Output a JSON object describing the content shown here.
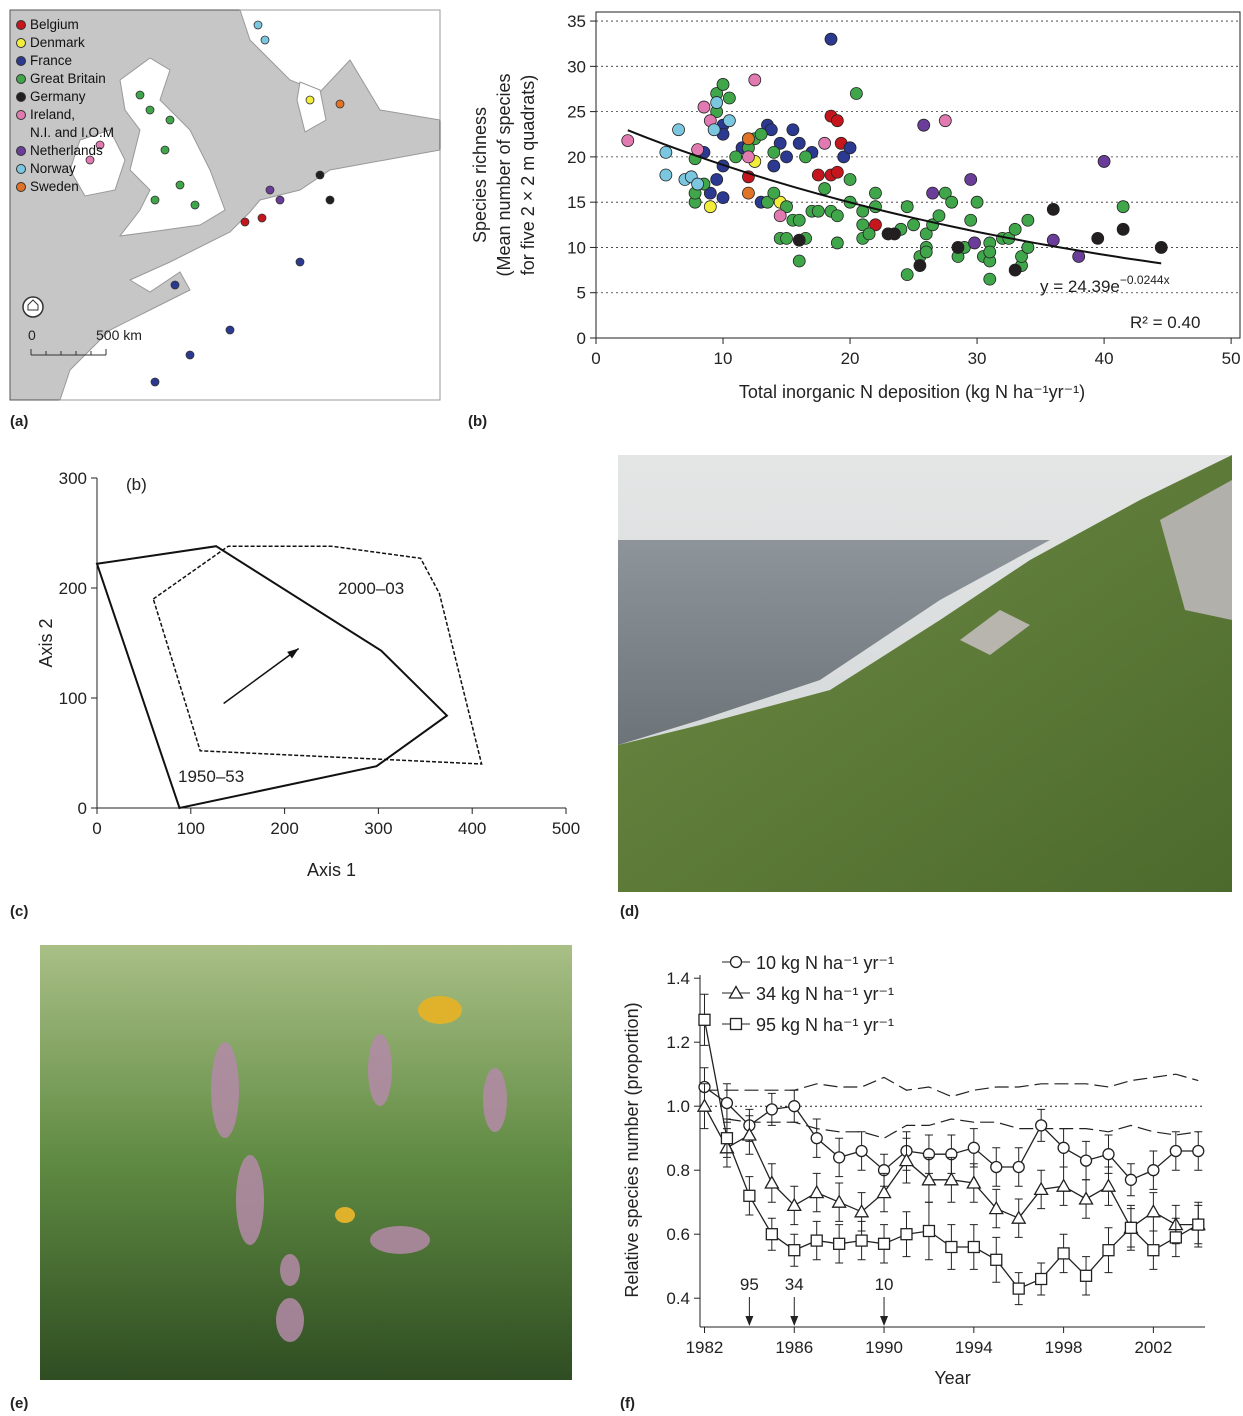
{
  "panels": [
    "(a)",
    "(b)",
    "(c)",
    "(d)",
    "(e)",
    "(f)"
  ],
  "map": {
    "scale_labels": [
      "0",
      "500 km"
    ]
  },
  "chart_data": [
    {
      "type": "scatter",
      "xlabel": "Total inorganic N deposition (kg N ha⁻¹yr⁻¹)",
      "ylabel": [
        "Species richness",
        "(Mean number of species",
        "for five 2 × 2 m quadrats)"
      ],
      "xlim": [
        0,
        50.7
      ],
      "ylim": [
        0,
        36
      ],
      "xticks": [
        0,
        10,
        20,
        30,
        40,
        50
      ],
      "yticks": [
        0,
        5,
        10,
        15,
        20,
        25,
        30,
        35
      ],
      "grid": true,
      "fit": {
        "a": 24.39,
        "k": -0.0244,
        "x_from": 2.5,
        "x_to": 44.5
      },
      "equation": {
        "base": "y = 24.39e",
        "exponent": "−0.0244x"
      },
      "r2_label": "R² = 0.40",
      "series": [
        {
          "name": "Belgium",
          "color": "#c4161c",
          "x": [
            12,
            17.5,
            18.5,
            19,
            19.3,
            18.5,
            22,
            19
          ],
          "y": [
            17.8,
            18,
            24.5,
            24,
            21.5,
            18,
            12.5,
            18.3
          ]
        },
        {
          "name": "Denmark",
          "color": "#f2ec3a",
          "x": [
            9,
            12.5,
            14.5
          ],
          "y": [
            14.5,
            19.5,
            15
          ]
        },
        {
          "name": "France",
          "color": "#2b3990",
          "x": [
            8.5,
            9,
            9.5,
            10,
            10,
            10,
            11.5,
            13,
            13.5,
            13.8,
            14,
            14.5,
            15.5,
            16,
            17,
            18.5,
            19.5,
            20,
            10,
            15
          ],
          "y": [
            20.5,
            16,
            17.5,
            19,
            15.5,
            23.5,
            21,
            15,
            23.5,
            23,
            19,
            21.5,
            23,
            21.5,
            20.5,
            33,
            20,
            21,
            22.5,
            20
          ]
        },
        {
          "name": "Great Britain",
          "color": "#3fa64a",
          "x": [
            7.8,
            7.8,
            7.8,
            8.5,
            9.5,
            10,
            10.5,
            9.5,
            11,
            12,
            12.5,
            13,
            13.5,
            14,
            14.5,
            15,
            15.5,
            16,
            16.5,
            16,
            17,
            17.5,
            18,
            18.5,
            19,
            19,
            20,
            20,
            20.5,
            21,
            21,
            21,
            21.5,
            22,
            22,
            23,
            23.5,
            24,
            24.5,
            24.5,
            25,
            25.5,
            26,
            26,
            26,
            26.5,
            27,
            27.5,
            28,
            28.5,
            29,
            29.5,
            30,
            30.5,
            31,
            31,
            31,
            31,
            32,
            32.5,
            33,
            33.5,
            33.5,
            34,
            34,
            41.5,
            15,
            14,
            16.5,
            12
          ],
          "y": [
            15,
            16,
            19.8,
            17,
            27,
            28,
            26.5,
            25,
            20,
            22,
            22,
            22.5,
            15,
            16,
            11,
            14.5,
            13,
            8.5,
            11,
            13,
            14,
            14,
            16.5,
            14,
            10.5,
            13.5,
            15,
            17.5,
            27,
            11,
            12.5,
            14,
            11.5,
            16,
            14.5,
            11.5,
            11.5,
            12,
            7,
            14.5,
            12.5,
            9,
            10,
            11.5,
            9.5,
            12.5,
            13.5,
            16,
            15,
            9,
            10,
            13,
            15,
            9,
            8.5,
            10.5,
            9.5,
            6.5,
            11,
            11,
            12,
            8,
            9,
            13,
            10,
            14.5,
            11,
            20.5,
            20,
            21
          ]
        },
        {
          "name": "Germany",
          "color": "#231f20",
          "x": [
            16,
            23,
            23.5,
            25.5,
            28.5,
            33,
            36,
            39.5,
            41.5,
            44.5
          ],
          "y": [
            10.8,
            11.5,
            11.5,
            8,
            10,
            7.5,
            14.2,
            11,
            12,
            10
          ]
        },
        {
          "name": "Ireland,\nN.I. and I.O.M",
          "color": "#e07ab0",
          "x": [
            2.5,
            8,
            8.5,
            9,
            12.5,
            12,
            14.5,
            18,
            27.5
          ],
          "y": [
            21.8,
            20.8,
            25.5,
            24,
            28.5,
            20,
            13.5,
            21.5,
            24
          ]
        },
        {
          "name": "Netherlands",
          "color": "#6a3d9a",
          "x": [
            25.8,
            26.5,
            29.5,
            29.8,
            36,
            38,
            40
          ],
          "y": [
            23.5,
            16,
            17.5,
            10.5,
            10.8,
            9,
            19.5
          ]
        },
        {
          "name": "Norway",
          "color": "#7cc7e0",
          "x": [
            5.5,
            5.5,
            6.5,
            7,
            7.5,
            8,
            9.5,
            10.5,
            9.3
          ],
          "y": [
            20.5,
            18,
            23,
            17.5,
            17.8,
            17,
            26,
            24,
            23
          ]
        },
        {
          "name": "Sweden",
          "color": "#e07326",
          "x": [
            12,
            12
          ],
          "y": [
            22,
            16
          ]
        }
      ]
    },
    {
      "type": "polygon",
      "xlabel": "Axis 1",
      "ylabel": "Axis 2",
      "inset_label": "(b)",
      "xlim": [
        0,
        500
      ],
      "ylim": [
        0,
        300
      ],
      "xticks": [
        0,
        100,
        200,
        300,
        400,
        500
      ],
      "yticks": [
        0,
        100,
        200,
        300
      ],
      "series": [
        {
          "name": "1950–53",
          "style": "solid",
          "x": [
            0,
            127,
            303,
            373,
            298,
            88
          ],
          "y": [
            222,
            238,
            143,
            84,
            38,
            0
          ]
        },
        {
          "name": "2000–03",
          "style": "dashed",
          "x": [
            60,
            140,
            250,
            345,
            365,
            410,
            110
          ],
          "y": [
            190,
            238,
            238,
            227,
            195,
            40,
            52
          ]
        }
      ],
      "arrow": {
        "x": [
          135,
          215
        ],
        "y": [
          95,
          145
        ]
      }
    },
    {
      "type": "line",
      "xlabel": "Year",
      "ylabel": "Relative species number (proportion)",
      "xlim": [
        1981.8,
        2004.3
      ],
      "ylim": [
        0.31,
        1.41
      ],
      "xticks": [
        1982,
        1986,
        1990,
        1994,
        1998,
        2002
      ],
      "yticks": [
        0.4,
        0.6,
        0.8,
        {
          "value": 1,
          "label": "1.0"
        },
        1.2,
        1.4
      ],
      "hline": 1,
      "x": [
        1982,
        1983,
        1984,
        1985,
        1986,
        1987,
        1988,
        1989,
        1990,
        1991,
        1992,
        1993,
        1994,
        1995,
        1996,
        1997,
        1998,
        1999,
        2000,
        2001,
        2002,
        2003,
        2004
      ],
      "series": [
        {
          "name": "10 kg N ha⁻¹ yr⁻¹",
          "marker": "circle",
          "values": [
            1.06,
            1.01,
            0.94,
            0.99,
            1.0,
            0.9,
            0.84,
            0.86,
            0.8,
            0.86,
            0.85,
            0.85,
            0.87,
            0.81,
            0.81,
            0.94,
            0.87,
            0.83,
            0.85,
            0.77,
            0.8,
            0.86,
            0.86
          ],
          "errors": [
            0.06,
            0.06,
            0.05,
            0.05,
            0.05,
            0.06,
            0.06,
            0.06,
            0.05,
            0.06,
            0.06,
            0.06,
            0.06,
            0.06,
            0.06,
            0.05,
            0.06,
            0.06,
            0.06,
            0.05,
            0.06,
            0.06,
            0.06
          ]
        },
        {
          "name": "34 kg N ha⁻¹ yr⁻¹",
          "marker": "triangle",
          "values": [
            1.0,
            0.87,
            0.91,
            0.76,
            0.69,
            0.73,
            0.7,
            0.67,
            0.73,
            0.83,
            0.77,
            0.77,
            0.76,
            0.68,
            0.65,
            0.74,
            0.75,
            0.71,
            0.75,
            0.62,
            0.67,
            0.63,
            0.63
          ],
          "errors": [
            0.07,
            0.06,
            0.06,
            0.06,
            0.06,
            0.06,
            0.06,
            0.06,
            0.06,
            0.07,
            0.07,
            0.07,
            0.06,
            0.06,
            0.06,
            0.06,
            0.06,
            0.06,
            0.06,
            0.06,
            0.06,
            0.06,
            0.06
          ]
        },
        {
          "name": "95 kg N ha⁻¹ yr⁻¹",
          "marker": "square",
          "values": [
            1.27,
            0.9,
            0.72,
            0.6,
            0.55,
            0.58,
            0.57,
            0.58,
            0.57,
            0.6,
            0.61,
            0.56,
            0.56,
            0.52,
            0.43,
            0.46,
            0.54,
            0.47,
            0.55,
            0.62,
            0.55,
            0.59,
            0.63
          ],
          "errors": [
            0.08,
            0.06,
            0.06,
            0.05,
            0.05,
            0.06,
            0.06,
            0.06,
            0.06,
            0.07,
            0.09,
            0.07,
            0.07,
            0.07,
            0.05,
            0.05,
            0.06,
            0.06,
            0.07,
            0.07,
            0.06,
            0.06,
            0.07
          ]
        }
      ],
      "reference_lines": [
        {
          "values": [
            1.05,
            1.05,
            1.05,
            1.05,
            1.05,
            1.07,
            1.06,
            1.06,
            1.09,
            1.05,
            1.06,
            1.03,
            1.05,
            1.06,
            1.06,
            1.07,
            1.07,
            1.07,
            1.06,
            1.08,
            1.09,
            1.1,
            1.08
          ]
        },
        {
          "values": [
            null,
            0.96,
            0.95,
            0.95,
            0.95,
            0.93,
            0.92,
            0.92,
            0.9,
            0.94,
            0.94,
            0.96,
            0.95,
            0.95,
            0.93,
            0.93,
            0.93,
            0.93,
            0.92,
            0.94,
            0.92,
            0.91,
            0.92
          ]
        }
      ],
      "annotations": [
        {
          "x": 1984,
          "text": "95"
        },
        {
          "x": 1986,
          "text": "34"
        },
        {
          "x": 1990,
          "text": "10"
        }
      ]
    }
  ]
}
